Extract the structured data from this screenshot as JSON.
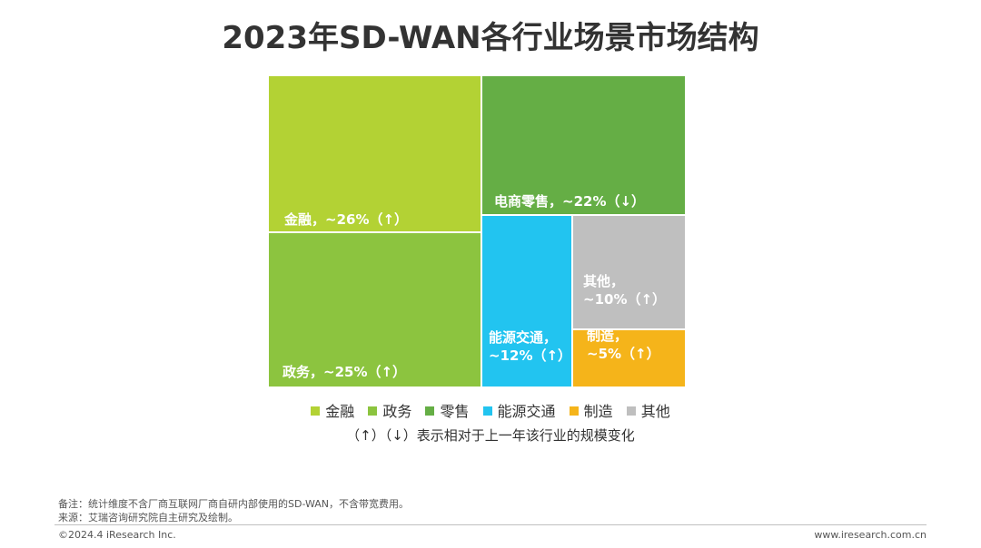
{
  "title": "2023年SD-WAN各行业场景市场结构",
  "chart_data": {
    "type": "treemap",
    "title": "2023年SD-WAN各行业场景市场结构",
    "segments": [
      {
        "name": "金融",
        "label_line1": "金融，~26%（↑）",
        "label_line2": "",
        "value": 26,
        "trend": "↑",
        "color": "#b3d234"
      },
      {
        "name": "政务",
        "label_line1": "政务，~25%（↑）",
        "label_line2": "",
        "value": 25,
        "trend": "↑",
        "color": "#8cc43f"
      },
      {
        "name": "零售",
        "label_line1": "电商零售，~22%（↓）",
        "label_line2": "",
        "value": 22,
        "trend": "↓",
        "color": "#65ae45"
      },
      {
        "name": "能源交通",
        "label_line1": "能源交通，",
        "label_line2": "~12%（↑）",
        "value": 12,
        "trend": "↑",
        "color": "#22c4f0"
      },
      {
        "name": "其他",
        "label_line1": "其他，",
        "label_line2": "~10%（↑）",
        "value": 10,
        "trend": "↑",
        "color": "#bfbfbf"
      },
      {
        "name": "制造",
        "label_line1": "制造，",
        "label_line2": "~5%（↑）",
        "value": 5,
        "trend": "↑",
        "color": "#f5b41a"
      }
    ]
  },
  "legend": {
    "items": [
      {
        "label": "金融",
        "color": "#b3d234"
      },
      {
        "label": "政务",
        "color": "#8cc43f"
      },
      {
        "label": "零售",
        "color": "#65ae45"
      },
      {
        "label": "能源交通",
        "color": "#22c4f0"
      },
      {
        "label": "制造",
        "color": "#f5b41a"
      },
      {
        "label": "其他",
        "color": "#bfbfbf"
      }
    ],
    "note": "（↑）（↓）表示相对于上一年该行业的规模变化"
  },
  "footer": {
    "note1": "备注：统计维度不含厂商互联网厂商自研内部使用的SD-WAN，不含带宽费用。",
    "note2": "来源：艾瑞咨询研究院自主研究及绘制。",
    "copyright": "©2024.4 iResearch Inc.",
    "website": "www.iresearch.com.cn"
  }
}
